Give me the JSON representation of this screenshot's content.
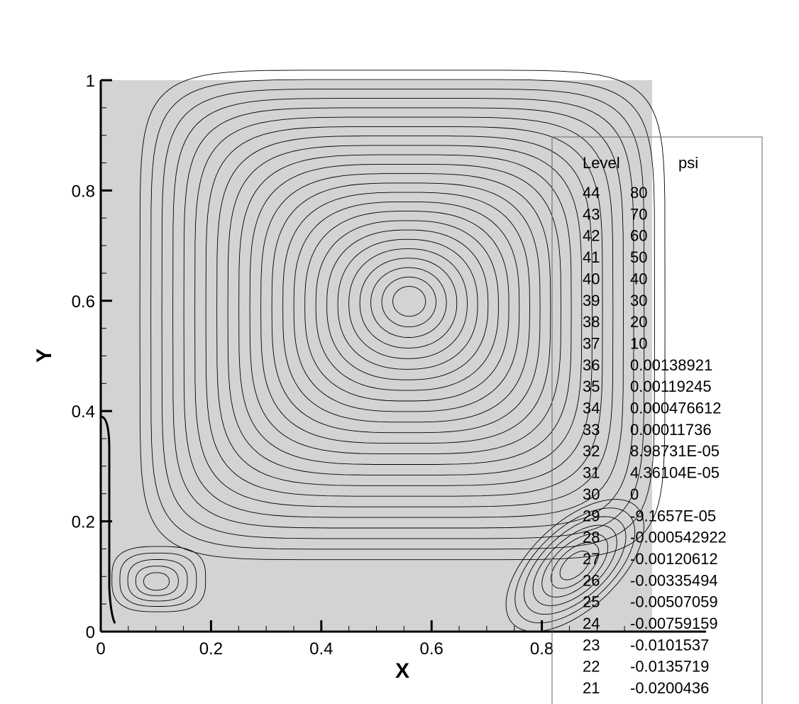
{
  "chart_data": {
    "type": "contour",
    "xlabel": "X",
    "ylabel": "Y",
    "xlim": [
      0,
      1
    ],
    "ylim": [
      0,
      1
    ],
    "x_ticks": [
      "0",
      "0.2",
      "0.4",
      "0.6",
      "0.8"
    ],
    "y_ticks": [
      "0",
      "0.2",
      "0.4",
      "0.6",
      "0.8",
      "1"
    ],
    "colors": {
      "field": "#d3d3d3",
      "lines": "#000000",
      "frame": "#666666"
    },
    "vortices": [
      {
        "kind": "primary",
        "center": [
          0.56,
          0.6
        ]
      },
      {
        "kind": "bottom-left corner",
        "center": [
          0.1,
          0.09
        ]
      },
      {
        "kind": "bottom-right corner",
        "center": [
          0.86,
          0.12
        ]
      }
    ],
    "legend": {
      "placement": "right",
      "headers": [
        "Level",
        "psi"
      ],
      "rows": [
        [
          "44",
          "80"
        ],
        [
          "43",
          "70"
        ],
        [
          "42",
          "60"
        ],
        [
          "41",
          "50"
        ],
        [
          "40",
          "40"
        ],
        [
          "39",
          "30"
        ],
        [
          "38",
          "20"
        ],
        [
          "37",
          "10"
        ],
        [
          "36",
          "0.00138921"
        ],
        [
          "35",
          "0.00119245"
        ],
        [
          "34",
          "0.000476612"
        ],
        [
          "33",
          "0.00011736"
        ],
        [
          "32",
          "8.98731E-05"
        ],
        [
          "31",
          "4.36104E-05"
        ],
        [
          "30",
          "0"
        ],
        [
          "29",
          "-9.1657E-05"
        ],
        [
          "28",
          "-0.000542922"
        ],
        [
          "27",
          "-0.00120612"
        ],
        [
          "26",
          "-0.00335494"
        ],
        [
          "25",
          "-0.00507059"
        ],
        [
          "24",
          "-0.00759159"
        ],
        [
          "23",
          "-0.0101537"
        ],
        [
          "22",
          "-0.0135719"
        ],
        [
          "21",
          "-0.0200436"
        ]
      ]
    }
  }
}
